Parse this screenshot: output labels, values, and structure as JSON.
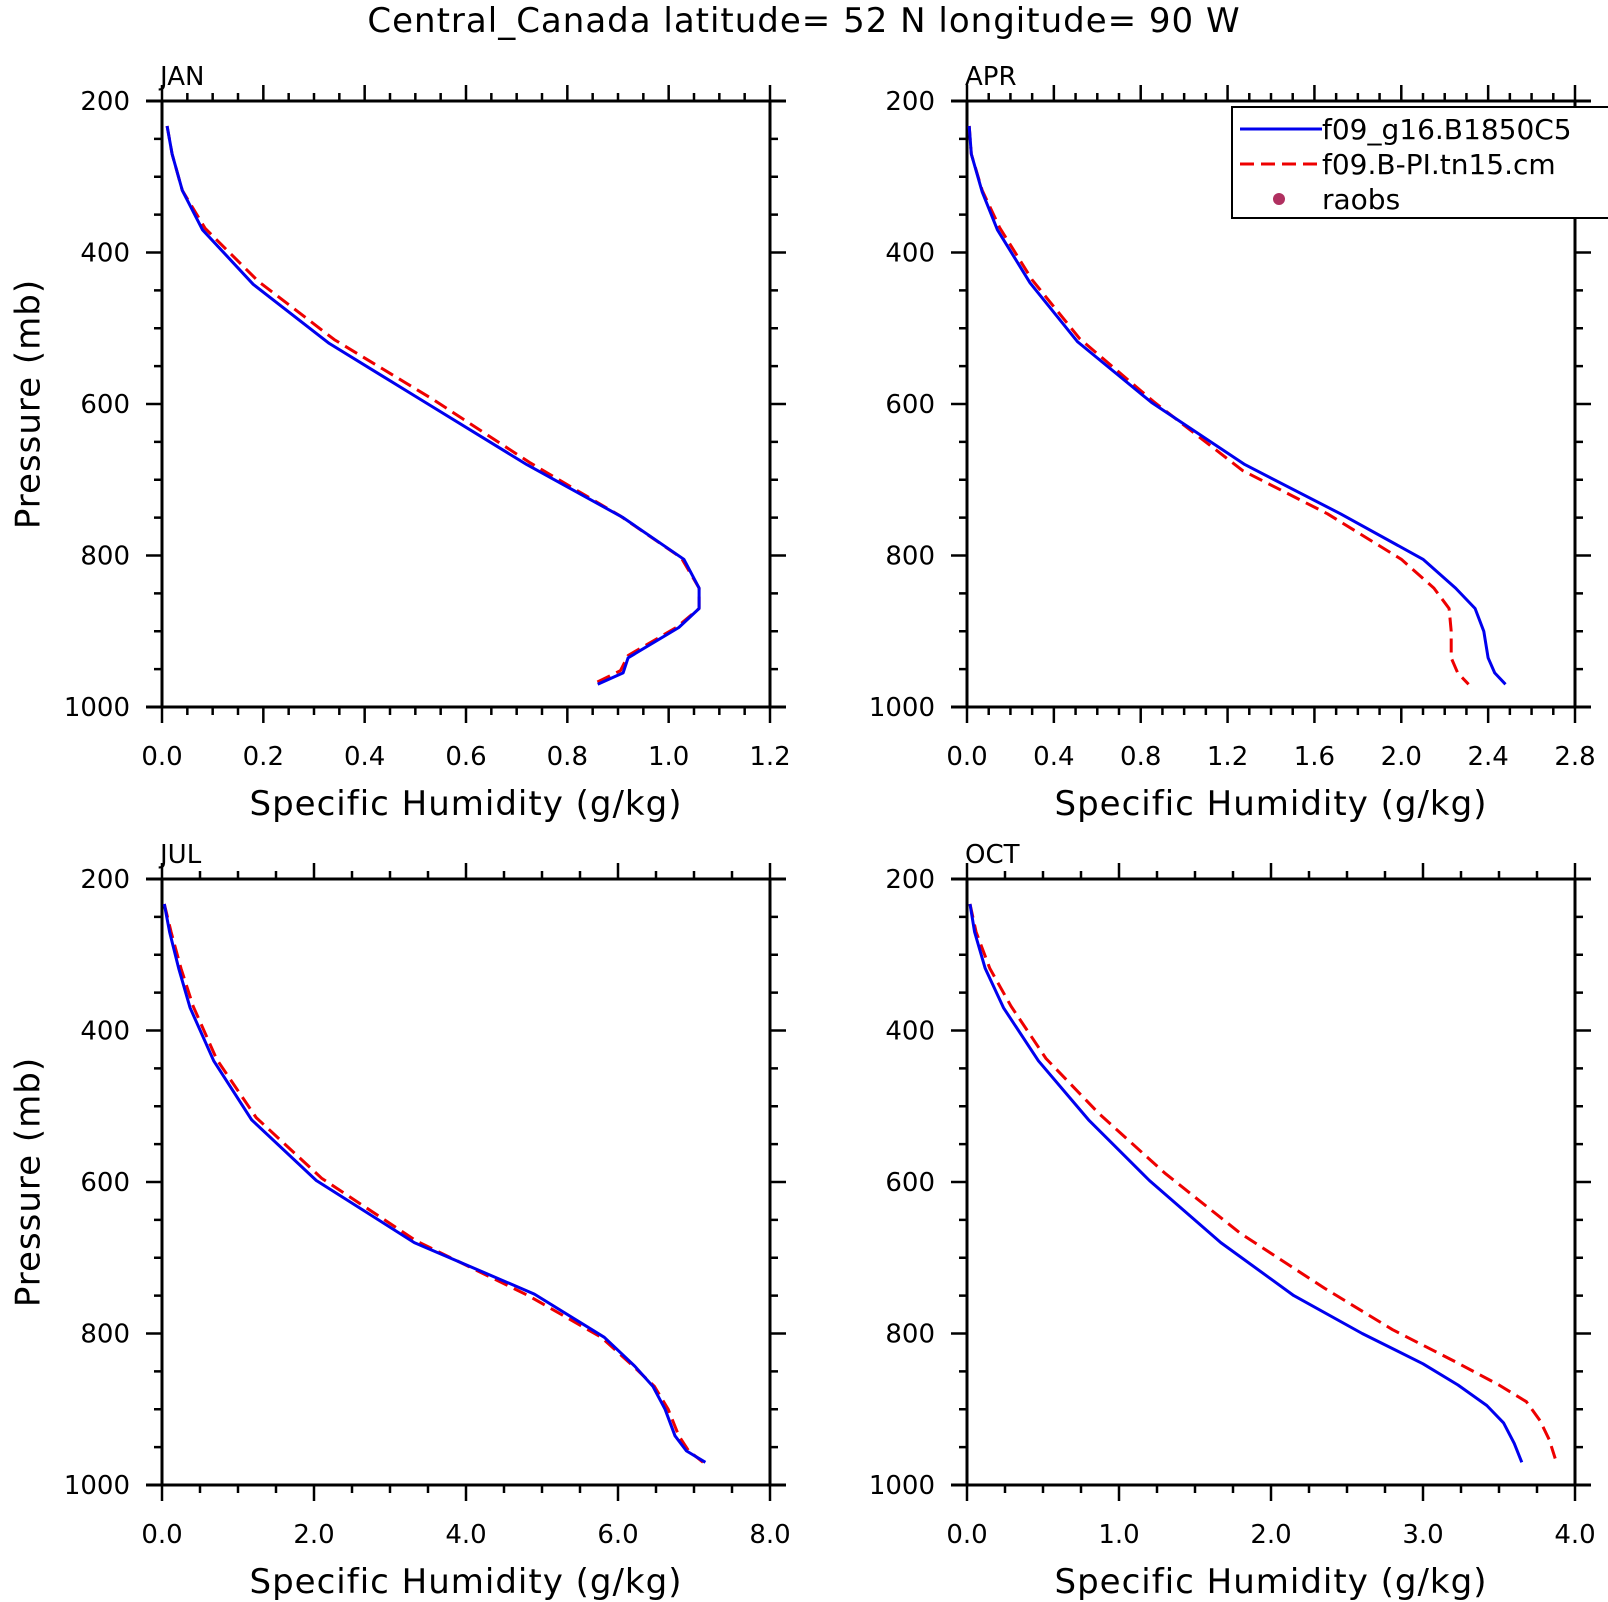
{
  "figure": {
    "title": "Central_Canada  latitude= 52 N longitude= 90 W"
  },
  "colors": {
    "series1": "#0000ee",
    "series2": "#ee0000",
    "raobs": "#b03060",
    "axis": "#000000"
  },
  "legend": {
    "placement": "top-right of APR panel",
    "entries": [
      {
        "label": "f09_g16.B1850C5",
        "style": "solid",
        "color": "#0000ee"
      },
      {
        "label": "f09.B-PI.tn15.cm",
        "style": "dashed",
        "color": "#ee0000"
      },
      {
        "label": "raobs",
        "style": "dot",
        "color": "#b03060"
      }
    ]
  },
  "chart_data": [
    {
      "type": "line",
      "panel_label": "JAN",
      "xlabel": "Specific Humidity (g/kg)",
      "ylabel": "Pressure (mb)",
      "xlim": [
        0,
        1.2
      ],
      "ylim": [
        200,
        1000
      ],
      "y_inverted": true,
      "xticks": [
        "0.0",
        "0.2",
        "0.4",
        "0.6",
        "0.8",
        "1.0",
        "1.2"
      ],
      "yticks": [
        "200",
        "400",
        "600",
        "800",
        "1000"
      ],
      "series": [
        {
          "name": "f09_g16.B1850C5",
          "points": [
            [
              0.01,
              233
            ],
            [
              0.02,
              270
            ],
            [
              0.04,
              318
            ],
            [
              0.08,
              370
            ],
            [
              0.18,
              442
            ],
            [
              0.33,
              520
            ],
            [
              0.52,
              598
            ],
            [
              0.72,
              680
            ],
            [
              0.91,
              750
            ],
            [
              1.03,
              805
            ],
            [
              1.06,
              843
            ],
            [
              1.06,
              870
            ],
            [
              1.02,
              895
            ],
            [
              0.92,
              935
            ],
            [
              0.91,
              955
            ],
            [
              0.86,
              970
            ]
          ]
        },
        {
          "name": "f09.B-PI.tn15.cm",
          "points": [
            [
              0.01,
              233
            ],
            [
              0.02,
              270
            ],
            [
              0.04,
              318
            ],
            [
              0.085,
              368
            ],
            [
              0.19,
              438
            ],
            [
              0.34,
              515
            ],
            [
              0.535,
              594
            ],
            [
              0.725,
              677
            ],
            [
              0.905,
              748
            ],
            [
              1.025,
              803
            ],
            [
              1.06,
              843
            ],
            [
              1.06,
              870
            ],
            [
              1.015,
              895
            ],
            [
              0.92,
              932
            ],
            [
              0.905,
              952
            ],
            [
              0.85,
              970
            ]
          ]
        }
      ]
    },
    {
      "type": "line",
      "panel_label": "APR",
      "xlabel": "Specific Humidity (g/kg)",
      "ylabel": "",
      "xlim": [
        0,
        2.8
      ],
      "ylim": [
        200,
        1000
      ],
      "y_inverted": true,
      "xticks": [
        "0.0",
        "0.4",
        "0.8",
        "1.2",
        "1.6",
        "2.0",
        "2.4",
        "2.8"
      ],
      "yticks": [
        "200",
        "400",
        "600",
        "800",
        "1000"
      ],
      "series": [
        {
          "name": "f09_g16.B1850C5",
          "points": [
            [
              0.01,
              233
            ],
            [
              0.02,
              270
            ],
            [
              0.07,
              320
            ],
            [
              0.14,
              370
            ],
            [
              0.29,
              440
            ],
            [
              0.51,
              518
            ],
            [
              0.85,
              598
            ],
            [
              1.28,
              680
            ],
            [
              1.72,
              745
            ],
            [
              2.1,
              805
            ],
            [
              2.25,
              843
            ],
            [
              2.34,
              870
            ],
            [
              2.38,
              900
            ],
            [
              2.4,
              935
            ],
            [
              2.43,
              955
            ],
            [
              2.48,
              970
            ]
          ]
        },
        {
          "name": "f09.B-PI.tn15.cm",
          "points": [
            [
              0.01,
              233
            ],
            [
              0.02,
              270
            ],
            [
              0.07,
              318
            ],
            [
              0.15,
              367
            ],
            [
              0.3,
              436
            ],
            [
              0.52,
              514
            ],
            [
              0.86,
              597
            ],
            [
              1.27,
              688
            ],
            [
              1.66,
              745
            ],
            [
              2.0,
              805
            ],
            [
              2.15,
              843
            ],
            [
              2.22,
              870
            ],
            [
              2.23,
              900
            ],
            [
              2.23,
              935
            ],
            [
              2.26,
              955
            ],
            [
              2.31,
              970
            ]
          ]
        }
      ]
    },
    {
      "type": "line",
      "panel_label": "JUL",
      "xlabel": "Specific Humidity (g/kg)",
      "ylabel": "Pressure (mb)",
      "xlim": [
        0,
        8.0
      ],
      "ylim": [
        200,
        1000
      ],
      "y_inverted": true,
      "xticks": [
        "0.0",
        "2.0",
        "4.0",
        "6.0",
        "8.0"
      ],
      "yticks": [
        "200",
        "400",
        "600",
        "800",
        "1000"
      ],
      "series": [
        {
          "name": "f09_g16.B1850C5",
          "points": [
            [
              0.03,
              233
            ],
            [
              0.1,
              270
            ],
            [
              0.22,
              318
            ],
            [
              0.37,
              370
            ],
            [
              0.68,
              440
            ],
            [
              1.18,
              518
            ],
            [
              2.03,
              598
            ],
            [
              3.32,
              680
            ],
            [
              4.9,
              748
            ],
            [
              5.82,
              805
            ],
            [
              6.22,
              843
            ],
            [
              6.46,
              870
            ],
            [
              6.62,
              900
            ],
            [
              6.75,
              935
            ],
            [
              6.9,
              955
            ],
            [
              7.15,
              970
            ]
          ]
        },
        {
          "name": "f09.B-PI.tn15.cm",
          "points": [
            [
              0.03,
              233
            ],
            [
              0.12,
              270
            ],
            [
              0.25,
              318
            ],
            [
              0.41,
              368
            ],
            [
              0.72,
              438
            ],
            [
              1.24,
              515
            ],
            [
              2.1,
              595
            ],
            [
              3.35,
              678
            ],
            [
              4.82,
              750
            ],
            [
              5.78,
              805
            ],
            [
              6.2,
              843
            ],
            [
              6.48,
              870
            ],
            [
              6.66,
              900
            ],
            [
              6.8,
              935
            ],
            [
              6.93,
              955
            ],
            [
              7.12,
              970
            ]
          ]
        }
      ]
    },
    {
      "type": "line",
      "panel_label": "OCT",
      "xlabel": "Specific Humidity (g/kg)",
      "ylabel": "",
      "xlim": [
        0,
        4.0
      ],
      "ylim": [
        200,
        1000
      ],
      "y_inverted": true,
      "xticks": [
        "0.0",
        "1.0",
        "2.0",
        "3.0",
        "4.0"
      ],
      "yticks": [
        "200",
        "400",
        "600",
        "800",
        "1000"
      ],
      "series": [
        {
          "name": "f09_g16.B1850C5",
          "points": [
            [
              0.02,
              233
            ],
            [
              0.05,
              270
            ],
            [
              0.12,
              318
            ],
            [
              0.24,
              370
            ],
            [
              0.47,
              440
            ],
            [
              0.8,
              518
            ],
            [
              1.2,
              598
            ],
            [
              1.67,
              680
            ],
            [
              2.15,
              750
            ],
            [
              2.6,
              800
            ],
            [
              3.0,
              840
            ],
            [
              3.23,
              868
            ],
            [
              3.42,
              895
            ],
            [
              3.53,
              918
            ],
            [
              3.6,
              945
            ],
            [
              3.65,
              970
            ]
          ]
        },
        {
          "name": "f09.B-PI.tn15.cm",
          "points": [
            [
              0.02,
              233
            ],
            [
              0.06,
              270
            ],
            [
              0.15,
              318
            ],
            [
              0.29,
              368
            ],
            [
              0.52,
              437
            ],
            [
              0.87,
              510
            ],
            [
              1.3,
              588
            ],
            [
              1.8,
              668
            ],
            [
              2.35,
              740
            ],
            [
              2.8,
              795
            ],
            [
              3.22,
              838
            ],
            [
              3.5,
              868
            ],
            [
              3.68,
              890
            ],
            [
              3.77,
              915
            ],
            [
              3.83,
              940
            ],
            [
              3.87,
              965
            ]
          ]
        }
      ]
    }
  ]
}
